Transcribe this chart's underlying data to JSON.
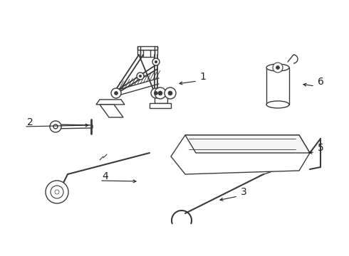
{
  "bg_color": "#ffffff",
  "lc": "#3a3a3a",
  "lw": 1.0,
  "fig_w": 4.9,
  "fig_h": 3.6
}
